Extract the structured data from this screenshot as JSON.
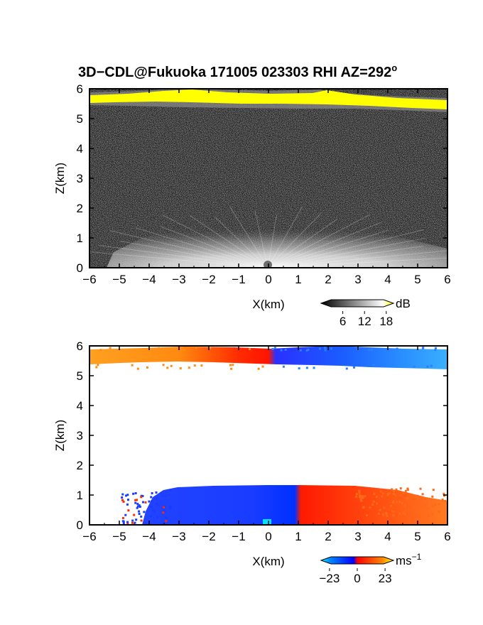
{
  "title": "3D−CDL@Fukuoka 171005 023303 RHI AZ=292",
  "title_superscript": "o",
  "chart_data": [
    {
      "type": "heatmap",
      "name": "reflectivity",
      "xlabel": "X(km)",
      "ylabel": "Z(km)",
      "xlim": [
        -6,
        6
      ],
      "ylim": [
        0,
        6
      ],
      "x_ticks": [
        "−6",
        "−5",
        "−4",
        "−3",
        "−2",
        "−1",
        "0",
        "1",
        "2",
        "3",
        "4",
        "5",
        "6"
      ],
      "y_ticks": [
        "0",
        "1",
        "2",
        "3",
        "4",
        "5",
        "6"
      ],
      "colorbar": {
        "unit": "dB",
        "ticks": [
          "6",
          "12",
          "18"
        ],
        "tick_values": [
          6,
          12,
          18
        ],
        "range": [
          0,
          20
        ],
        "colors": [
          "#000000",
          "#ffffff",
          "#ffff00"
        ]
      },
      "features": [
        {
          "label": "bright layer",
          "z_km": [
            5.3,
            5.9
          ],
          "max_dB": 18
        },
        {
          "label": "near-surface echo",
          "z_km": [
            0,
            1.3
          ],
          "x_km": [
            -3.5,
            3.5
          ],
          "max_dB": 12
        }
      ]
    },
    {
      "type": "heatmap",
      "name": "doppler_velocity",
      "xlabel": "X(km)",
      "ylabel": "Z(km)",
      "xlim": [
        -6,
        6
      ],
      "ylim": [
        0,
        6
      ],
      "x_ticks": [
        "−6",
        "−5",
        "−4",
        "−3",
        "−2",
        "−1",
        "0",
        "1",
        "2",
        "3",
        "4",
        "5",
        "6"
      ],
      "y_ticks": [
        "0",
        "1",
        "2",
        "3",
        "4",
        "5",
        "6"
      ],
      "colorbar": {
        "unit": "ms",
        "unit_superscript": "−1",
        "ticks": [
          "−23",
          "0",
          "23"
        ],
        "tick_values": [
          -23,
          0,
          23
        ],
        "range": [
          -30,
          30
        ],
        "colors": [
          "#00ffff",
          "#0000ff",
          "#ff0000",
          "#ffff00"
        ]
      },
      "features": [
        {
          "label": "upper layer",
          "z_km": [
            5.3,
            5.95
          ],
          "x_km": [
            -6,
            6
          ]
        },
        {
          "label": "low layer",
          "z_km": [
            0,
            1.3
          ],
          "x_km": [
            -4.5,
            6
          ]
        }
      ]
    }
  ]
}
